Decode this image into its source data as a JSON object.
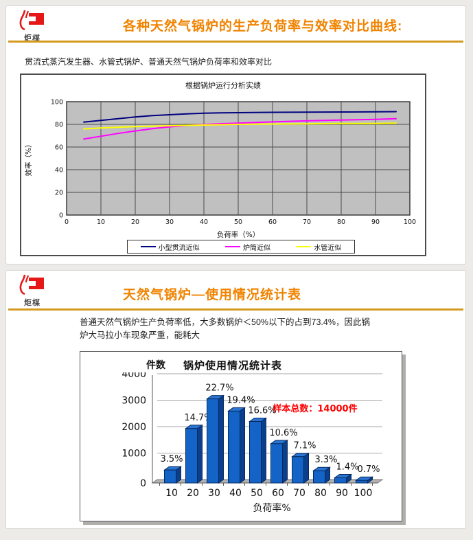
{
  "logo": {
    "text": "炬楳"
  },
  "slide1": {
    "title": "各种天然气锅炉的生产负荷率与效率对比曲线:",
    "subtitle": "贯流式蒸汽发生器、水管式锅炉、普通天然气锅炉负荷率和效率对比"
  },
  "slide2": {
    "title": "天然气锅炉—使用情况统计表",
    "body_line1": "普通天然气锅炉生产负荷率低，大多数锅炉＜50%以下的占到73.4%，因此锅",
    "body_line2": "炉大马拉小车现象严重，能耗大"
  },
  "chart_data": [
    {
      "type": "line",
      "title": "根据锅炉运行分析实绩",
      "xlabel": "负荷率（%）",
      "ylabel": "效率（%）",
      "xlim": [
        0,
        100
      ],
      "ylim": [
        0,
        100
      ],
      "x_ticks": [
        0,
        10,
        20,
        30,
        40,
        50,
        60,
        70,
        80,
        90,
        100
      ],
      "y_ticks": [
        0,
        20,
        40,
        60,
        80,
        100
      ],
      "plot_bg": "#c0c0c0",
      "grid": "on",
      "legend_position": "bottom",
      "series": [
        {
          "name": "小型贯流近似",
          "color": "#000080",
          "x": [
            5,
            10,
            15,
            20,
            25,
            30,
            35,
            40,
            45,
            50,
            60,
            70,
            80,
            90,
            96
          ],
          "y": [
            82,
            83.5,
            85,
            86.5,
            87.7,
            88.5,
            89.3,
            89.8,
            90.1,
            90.3,
            90.6,
            90.8,
            90.9,
            91,
            91.2
          ]
        },
        {
          "name": "炉筒近似",
          "color": "#ff00ff",
          "x": [
            5,
            10,
            15,
            20,
            25,
            30,
            35,
            40,
            45,
            50,
            60,
            70,
            80,
            90,
            96
          ],
          "y": [
            67,
            69.5,
            72,
            74.2,
            76.2,
            77.8,
            79,
            79.9,
            80.6,
            81.1,
            82.2,
            83.1,
            83.8,
            84.4,
            85
          ]
        },
        {
          "name": "水管近似",
          "color": "#ffff00",
          "x": [
            5,
            10,
            15,
            20,
            25,
            30,
            35,
            40,
            45,
            50,
            60,
            70,
            80,
            90,
            96
          ],
          "y": [
            76,
            76.8,
            77.4,
            78,
            78.4,
            78.8,
            79.1,
            79.4,
            79.7,
            80,
            80.3,
            80.5,
            80.7,
            80.8,
            81
          ]
        }
      ]
    },
    {
      "type": "bar",
      "title": "锅炉使用情况统计表",
      "xlabel": "负荷率%",
      "ylabel": "件数",
      "ylim": [
        0,
        4000
      ],
      "y_ticks": [
        0,
        1000,
        2000,
        3000,
        4000
      ],
      "categories": [
        "10",
        "20",
        "30",
        "40",
        "50",
        "60",
        "70",
        "80",
        "90",
        "100"
      ],
      "values": [
        490,
        2058,
        3178,
        2716,
        2324,
        1484,
        994,
        462,
        196,
        98
      ],
      "labels": [
        "3.5%",
        "14.7%",
        "22.7%",
        "19.4%",
        "16.6%",
        "10.6%",
        "7.1%",
        "3.3%",
        "1.4%",
        "0.7%"
      ],
      "annotation": "样本总数：14000件",
      "annotation_color": "#ff0000",
      "sample_total": "14000件",
      "bar_color": "#1464c8",
      "bar_side_color": "#0b3f8c",
      "bar_top_color": "#2b74d2",
      "bar_edge_color": "#05295e",
      "grid": "on"
    }
  ]
}
